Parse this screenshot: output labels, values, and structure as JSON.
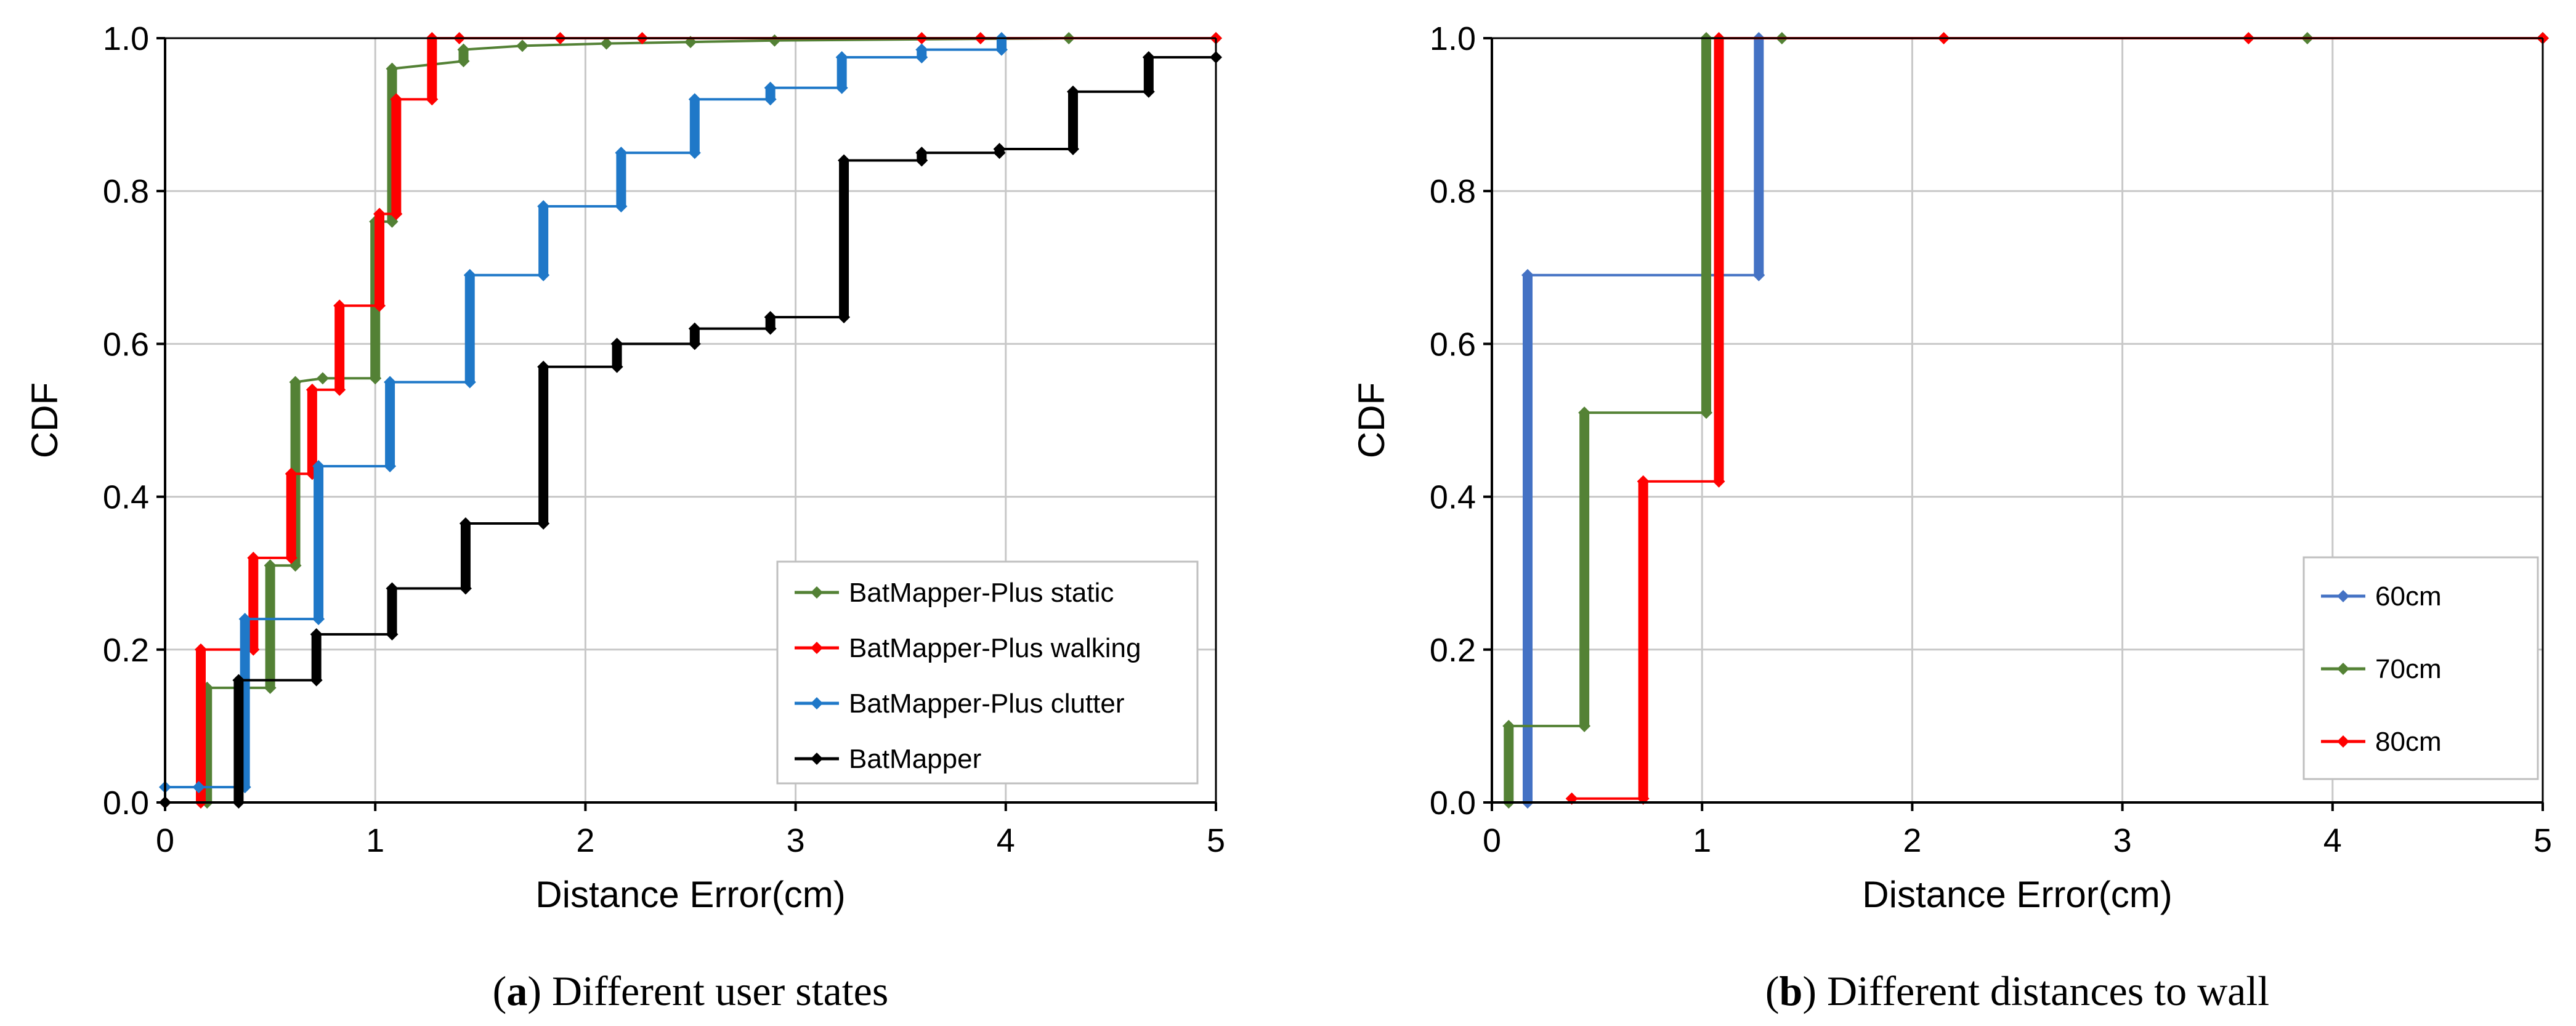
{
  "chart_data": [
    {
      "type": "line",
      "subtype": "step-cdf",
      "caption_label": "a",
      "caption_text": "Different user states",
      "xlabel": "Distance Error(cm)",
      "ylabel": "CDF",
      "xlim": [
        0,
        5
      ],
      "ylim": [
        0,
        1
      ],
      "xticks": [
        0,
        1,
        2,
        3,
        4,
        5
      ],
      "yticks": [
        0.0,
        0.2,
        0.4,
        0.6,
        0.8,
        1.0
      ],
      "xtick_labels": [
        "0",
        "1",
        "2",
        "3",
        "4",
        "5"
      ],
      "ytick_labels": [
        "0.0",
        "0.2",
        "0.4",
        "0.6",
        "0.8",
        "1.0"
      ],
      "grid": true,
      "legend_position": "lower-right",
      "series": [
        {
          "name": "BatMapper-Plus static",
          "color": "#538135",
          "x": [
            0,
            0.2,
            0.2,
            0.5,
            0.5,
            0.62,
            0.62,
            0.75,
            1.0,
            1.0,
            1.08,
            1.08,
            1.42,
            1.42,
            1.7,
            2.1,
            2.5,
            2.9,
            4.3,
            5.0
          ],
          "y": [
            0.0,
            0.0,
            0.15,
            0.15,
            0.31,
            0.31,
            0.55,
            0.555,
            0.555,
            0.76,
            0.76,
            0.96,
            0.97,
            0.985,
            0.99,
            0.993,
            0.995,
            0.997,
            1.0,
            1.0
          ]
        },
        {
          "name": "BatMapper-Plus walking",
          "color": "#ff0000",
          "x": [
            0,
            0.17,
            0.17,
            0.42,
            0.42,
            0.6,
            0.6,
            0.7,
            0.7,
            0.83,
            0.83,
            1.02,
            1.02,
            1.1,
            1.1,
            1.27,
            1.27,
            1.4,
            1.88,
            2.27,
            3.6,
            3.88,
            5.0
          ],
          "y": [
            0.0,
            0.0,
            0.2,
            0.2,
            0.32,
            0.32,
            0.43,
            0.43,
            0.54,
            0.54,
            0.65,
            0.65,
            0.77,
            0.77,
            0.92,
            0.92,
            1.0,
            1.0,
            1.0,
            1.0,
            1.0,
            1.0,
            1.0
          ]
        },
        {
          "name": "BatMapper-Plus clutter",
          "color": "#1f78c8",
          "x": [
            0,
            0.16,
            0.16,
            0.38,
            0.38,
            0.73,
            0.73,
            1.07,
            1.07,
            1.45,
            1.45,
            1.8,
            1.8,
            2.17,
            2.17,
            2.52,
            2.52,
            2.88,
            2.88,
            3.22,
            3.22,
            3.6,
            3.6,
            3.98,
            3.98
          ],
          "y": [
            0.02,
            0.02,
            0.02,
            0.02,
            0.24,
            0.24,
            0.44,
            0.44,
            0.55,
            0.55,
            0.69,
            0.69,
            0.78,
            0.78,
            0.85,
            0.85,
            0.92,
            0.92,
            0.935,
            0.935,
            0.975,
            0.975,
            0.985,
            0.985,
            1.0
          ]
        },
        {
          "name": "BatMapper",
          "color": "#000000",
          "x": [
            0,
            0.35,
            0.35,
            0.72,
            0.72,
            1.08,
            1.08,
            1.43,
            1.43,
            1.8,
            1.8,
            2.15,
            2.15,
            2.52,
            2.52,
            2.88,
            2.88,
            3.23,
            3.23,
            3.6,
            3.6,
            3.97,
            3.97,
            4.32,
            4.32,
            4.68,
            4.68,
            5.0
          ],
          "y": [
            0.0,
            0.0,
            0.16,
            0.16,
            0.22,
            0.22,
            0.28,
            0.28,
            0.365,
            0.365,
            0.57,
            0.57,
            0.6,
            0.6,
            0.62,
            0.62,
            0.635,
            0.635,
            0.84,
            0.84,
            0.85,
            0.85,
            0.855,
            0.855,
            0.93,
            0.93,
            0.975,
            0.975
          ]
        }
      ]
    },
    {
      "type": "line",
      "subtype": "step-cdf",
      "caption_label": "b",
      "caption_text": "Different distances to wall",
      "xlabel": "Distance Error(cm)",
      "ylabel": "CDF",
      "xlim": [
        0,
        5
      ],
      "ylim": [
        0,
        1
      ],
      "xticks": [
        0,
        1,
        2,
        3,
        4,
        5
      ],
      "yticks": [
        0.0,
        0.2,
        0.4,
        0.6,
        0.8,
        1.0
      ],
      "xtick_labels": [
        "0",
        "1",
        "2",
        "3",
        "4",
        "5"
      ],
      "ytick_labels": [
        "0.0",
        "0.2",
        "0.4",
        "0.6",
        "0.8",
        "1.0"
      ],
      "grid": true,
      "legend_position": "lower-right",
      "series": [
        {
          "name": "60cm",
          "color": "#4472c4",
          "x": [
            0.17,
            0.17,
            1.27,
            1.27,
            5.0
          ],
          "y": [
            0.0,
            0.69,
            0.69,
            1.0,
            1.0
          ]
        },
        {
          "name": "70cm",
          "color": "#548235",
          "x": [
            0.08,
            0.08,
            0.44,
            0.44,
            1.02,
            1.02,
            1.38,
            3.88,
            5.0
          ],
          "y": [
            0.0,
            0.1,
            0.1,
            0.51,
            0.51,
            1.0,
            1.0,
            1.0,
            1.0
          ]
        },
        {
          "name": "80cm",
          "color": "#ff0000",
          "x": [
            0.38,
            0.72,
            0.72,
            1.08,
            1.08,
            2.15,
            3.6,
            5.0
          ],
          "y": [
            0.005,
            0.005,
            0.42,
            0.42,
            1.0,
            1.0,
            1.0,
            1.0
          ]
        }
      ]
    }
  ]
}
